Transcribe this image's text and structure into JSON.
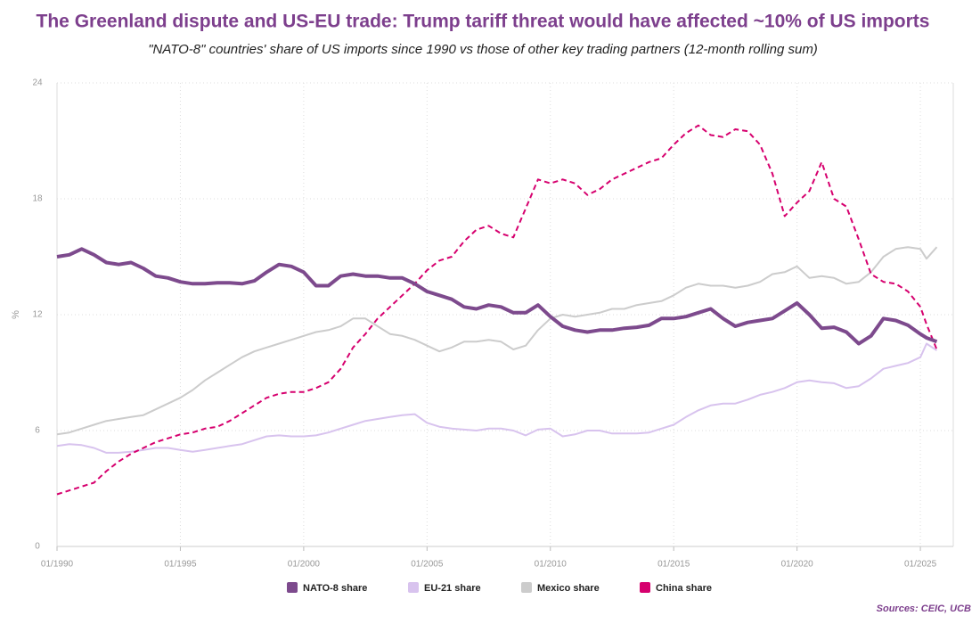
{
  "chart_data": {
    "type": "line",
    "title": "The Greenland dispute and US-EU trade: Trump tariff threat would have affected ~10% of US imports",
    "subtitle": "\"NATO-8\" countries' share of US imports since 1990 vs those of other key trading partners (12-month rolling sum)",
    "y_label": "%",
    "source": "Sources: CEIC, UCB",
    "grid": true,
    "xlim": [
      "01/1990",
      "05/2026"
    ],
    "xticks": [
      "01/1990",
      "01/1995",
      "01/2000",
      "01/2005",
      "01/2010",
      "01/2015",
      "01/2020",
      "01/2025"
    ],
    "ylim": [
      0,
      24
    ],
    "yticks": [
      0,
      6,
      12,
      18,
      24
    ],
    "x": [
      "01/1990",
      "07/1990",
      "01/1991",
      "07/1991",
      "01/1992",
      "07/1992",
      "01/1993",
      "07/1993",
      "01/1994",
      "07/1994",
      "01/1995",
      "07/1995",
      "01/1996",
      "07/1996",
      "01/1997",
      "07/1997",
      "01/1998",
      "07/1998",
      "01/1999",
      "07/1999",
      "01/2000",
      "07/2000",
      "01/2001",
      "07/2001",
      "01/2002",
      "07/2002",
      "01/2003",
      "07/2003",
      "01/2004",
      "07/2004",
      "01/2005",
      "07/2005",
      "01/2006",
      "07/2006",
      "01/2007",
      "07/2007",
      "01/2008",
      "07/2008",
      "01/2009",
      "07/2009",
      "01/2010",
      "07/2010",
      "01/2011",
      "07/2011",
      "01/2012",
      "07/2012",
      "01/2013",
      "07/2013",
      "01/2014",
      "07/2014",
      "01/2015",
      "07/2015",
      "01/2016",
      "07/2016",
      "01/2017",
      "07/2017",
      "01/2018",
      "07/2018",
      "01/2019",
      "07/2019",
      "01/2020",
      "07/2020",
      "01/2021",
      "07/2021",
      "01/2022",
      "07/2022",
      "01/2023",
      "07/2023",
      "01/2024",
      "07/2024",
      "01/2025",
      "04/2025",
      "09/2025"
    ],
    "series": [
      {
        "name": "NATO-8 share",
        "color": "#7d4a8d",
        "width": 4,
        "line_style": "solid",
        "values": [
          15.0,
          15.1,
          15.4,
          15.1,
          14.7,
          14.6,
          14.7,
          14.4,
          14.0,
          13.9,
          13.7,
          13.6,
          13.6,
          13.65,
          13.65,
          13.6,
          13.75,
          14.2,
          14.6,
          14.5,
          14.2,
          13.5,
          13.5,
          14.0,
          14.1,
          14.0,
          14.0,
          13.9,
          13.9,
          13.6,
          13.2,
          13.0,
          12.8,
          12.4,
          12.3,
          12.5,
          12.4,
          12.1,
          12.1,
          12.5,
          11.9,
          11.4,
          11.2,
          11.1,
          11.2,
          11.2,
          11.3,
          11.35,
          11.45,
          11.8,
          11.8,
          11.9,
          12.1,
          12.3,
          11.8,
          11.4,
          11.6,
          11.7,
          11.8,
          12.2,
          12.6,
          12.0,
          11.3,
          11.35,
          11.1,
          10.5,
          10.9,
          11.8,
          11.7,
          11.45,
          11.0,
          10.8,
          10.6
        ]
      },
      {
        "name": "EU-21 share",
        "color": "#d8c3ee",
        "width": 2,
        "line_style": "solid",
        "values": [
          5.2,
          5.3,
          5.25,
          5.1,
          4.85,
          4.85,
          4.9,
          5.0,
          5.1,
          5.1,
          5.0,
          4.9,
          5.0,
          5.1,
          5.2,
          5.3,
          5.5,
          5.7,
          5.75,
          5.7,
          5.7,
          5.75,
          5.9,
          6.1,
          6.3,
          6.5,
          6.6,
          6.7,
          6.8,
          6.85,
          6.4,
          6.2,
          6.1,
          6.05,
          6.0,
          6.1,
          6.1,
          6.0,
          5.75,
          6.05,
          6.1,
          5.7,
          5.8,
          6.0,
          6.0,
          5.85,
          5.85,
          5.85,
          5.9,
          6.1,
          6.3,
          6.7,
          7.05,
          7.3,
          7.4,
          7.4,
          7.6,
          7.85,
          8.0,
          8.2,
          8.5,
          8.6,
          8.5,
          8.45,
          8.2,
          8.3,
          8.7,
          9.2,
          9.35,
          9.5,
          9.8,
          10.5,
          10.15
        ]
      },
      {
        "name": "Mexico share",
        "color": "#cccccc",
        "width": 2,
        "line_style": "solid",
        "values": [
          5.8,
          5.9,
          6.1,
          6.3,
          6.5,
          6.6,
          6.7,
          6.8,
          7.1,
          7.4,
          7.7,
          8.1,
          8.6,
          9.0,
          9.4,
          9.8,
          10.1,
          10.3,
          10.5,
          10.7,
          10.9,
          11.1,
          11.2,
          11.4,
          11.8,
          11.8,
          11.4,
          11.0,
          10.9,
          10.7,
          10.4,
          10.1,
          10.3,
          10.6,
          10.6,
          10.7,
          10.6,
          10.2,
          10.4,
          11.2,
          11.8,
          12.0,
          11.9,
          12.0,
          12.1,
          12.3,
          12.3,
          12.5,
          12.6,
          12.7,
          13.0,
          13.4,
          13.6,
          13.5,
          13.5,
          13.4,
          13.5,
          13.7,
          14.1,
          14.2,
          14.5,
          13.9,
          14.0,
          13.9,
          13.6,
          13.7,
          14.2,
          15.0,
          15.4,
          15.5,
          15.4,
          14.9,
          15.5
        ]
      },
      {
        "name": "China share",
        "color": "#d6006e",
        "width": 2,
        "line_style": "dashed",
        "values": [
          2.7,
          2.9,
          3.1,
          3.3,
          3.9,
          4.4,
          4.8,
          5.1,
          5.4,
          5.6,
          5.8,
          5.9,
          6.1,
          6.2,
          6.5,
          6.9,
          7.3,
          7.7,
          7.9,
          8.0,
          8.0,
          8.2,
          8.5,
          9.2,
          10.3,
          11.0,
          11.8,
          12.4,
          13.0,
          13.6,
          14.3,
          14.8,
          15.0,
          15.8,
          16.4,
          16.6,
          16.2,
          16.0,
          17.5,
          19.0,
          18.8,
          19.0,
          18.8,
          18.2,
          18.5,
          19.0,
          19.3,
          19.6,
          19.9,
          20.1,
          20.8,
          21.4,
          21.8,
          21.3,
          21.2,
          21.6,
          21.5,
          20.8,
          19.3,
          17.1,
          17.8,
          18.4,
          19.9,
          18.0,
          17.6,
          15.9,
          14.1,
          13.7,
          13.6,
          13.2,
          12.4,
          11.5,
          10.2
        ]
      }
    ]
  }
}
